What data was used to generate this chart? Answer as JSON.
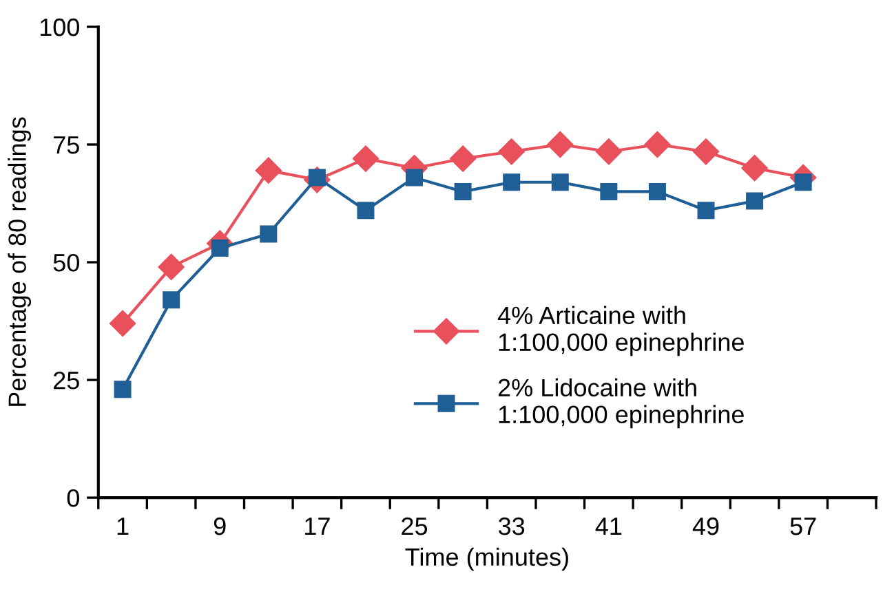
{
  "chart_data": {
    "type": "line",
    "xlabel": "Time (minutes)",
    "ylabel": "Percentage of 80 readings",
    "x": [
      1,
      5,
      9,
      13,
      17,
      21,
      25,
      29,
      33,
      37,
      41,
      45,
      49,
      53,
      57
    ],
    "series": [
      {
        "name": "4% Articaine with\n1:100,000 epinephrine",
        "color": "#e8505b",
        "marker": "diamond",
        "values": [
          37,
          49,
          54,
          69.5,
          67.5,
          72,
          70,
          72,
          73.5,
          75,
          73.5,
          75,
          73.5,
          70,
          68
        ]
      },
      {
        "name": "2% Lidocaine with\n1:100,000 epinephrine",
        "color": "#1f5f96",
        "marker": "square",
        "values": [
          23,
          42,
          53,
          56,
          68,
          61,
          68,
          65,
          67,
          67,
          65,
          65,
          61,
          63,
          67
        ]
      }
    ],
    "xlim": [
      -1,
      63
    ],
    "xticks": [
      {
        "value": -1,
        "label": null
      },
      1,
      {
        "value": 3,
        "label": null
      },
      {
        "value": 7,
        "label": null
      },
      9,
      {
        "value": 11,
        "label": null
      },
      {
        "value": 15,
        "label": null
      },
      17,
      {
        "value": 19,
        "label": null
      },
      {
        "value": 23,
        "label": null
      },
      25,
      {
        "value": 27,
        "label": null
      },
      {
        "value": 31,
        "label": null
      },
      33,
      {
        "value": 35,
        "label": null
      },
      {
        "value": 39,
        "label": null
      },
      41,
      {
        "value": 43,
        "label": null
      },
      {
        "value": 47,
        "label": null
      },
      49,
      {
        "value": 51,
        "label": null
      },
      {
        "value": 55,
        "label": null
      },
      57,
      {
        "value": 59,
        "label": null
      },
      {
        "value": 63,
        "label": null
      }
    ],
    "ylim": [
      0,
      100
    ],
    "yticks": [
      0,
      25,
      50,
      75,
      100
    ],
    "grid": false,
    "legend": "bottom right",
    "line_style": "solid"
  }
}
